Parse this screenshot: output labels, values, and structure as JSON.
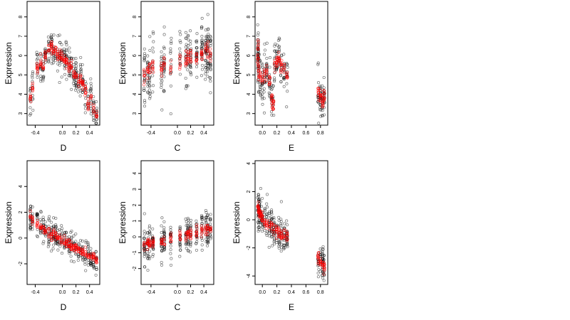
{
  "colors": {
    "series_a": "#000000",
    "series_b": "#ff0000",
    "background": "#ffffff"
  },
  "chart_data": [
    {
      "type": "scatter",
      "xlabel": "D",
      "ylabel": "Expression",
      "xlim": [
        -0.52,
        0.55
      ],
      "ylim": [
        2.4,
        8.8
      ],
      "xticks": [
        -0.4,
        0.0,
        0.2,
        0.4
      ],
      "xtick_labels": [
        "-0.4",
        "0.0",
        "0.2",
        "0.4"
      ],
      "yticks": [
        3,
        4,
        5,
        6,
        7,
        8
      ],
      "ytick_labels": [
        "3",
        "4",
        "5",
        "6",
        "7",
        "8"
      ],
      "groups_x": [
        -0.47,
        -0.44,
        -0.37,
        -0.32,
        -0.28,
        -0.25,
        -0.2,
        -0.16,
        -0.13,
        -0.1,
        -0.07,
        -0.04,
        -0.01,
        0.03,
        0.06,
        0.1,
        0.13,
        0.17,
        0.2,
        0.24,
        0.27,
        0.3,
        0.34,
        0.38,
        0.42,
        0.46,
        0.5
      ],
      "trend_y": [
        3.8,
        4.3,
        5.4,
        5.6,
        5.4,
        6.0,
        6.3,
        6.5,
        6.2,
        6.3,
        6.0,
        6.1,
        5.9,
        5.8,
        5.7,
        5.5,
        5.4,
        5.1,
        5.0,
        4.6,
        4.8,
        4.5,
        4.2,
        3.5,
        3.8,
        3.2,
        2.9
      ],
      "spread": 0.8,
      "sample_count": 340
    },
    {
      "type": "scatter",
      "xlabel": "C",
      "ylabel": "Expression",
      "xlim": [
        -0.55,
        0.55
      ],
      "ylim": [
        2.4,
        8.8
      ],
      "xticks": [
        -0.4,
        0.0,
        0.2,
        0.4
      ],
      "xtick_labels": [
        "-0.4",
        "0.0",
        "0.2",
        "0.4"
      ],
      "yticks": [
        3,
        4,
        5,
        6,
        7,
        8
      ],
      "ytick_labels": [
        "3",
        "4",
        "5",
        "6",
        "7",
        "8"
      ],
      "groups_x": [
        -0.5,
        -0.45,
        -0.42,
        -0.37,
        -0.24,
        -0.2,
        -0.1,
        0.04,
        0.13,
        0.16,
        0.2,
        0.29,
        0.37,
        0.43,
        0.46,
        0.5
      ],
      "trend_y": [
        5.0,
        5.2,
        5.3,
        5.4,
        5.3,
        5.5,
        5.4,
        5.6,
        5.7,
        5.8,
        5.9,
        6.0,
        6.1,
        6.2,
        6.2,
        6.1
      ],
      "spread": 1.3,
      "sample_count": 320
    },
    {
      "type": "scatter",
      "xlabel": "E",
      "ylabel": "Expression",
      "xlim": [
        -0.1,
        0.9
      ],
      "ylim": [
        2.4,
        8.8
      ],
      "xticks": [
        0.0,
        0.2,
        0.4,
        0.6,
        0.8
      ],
      "xtick_labels": [
        "0.0",
        "0.2",
        "0.4",
        "0.6",
        "0.8"
      ],
      "yticks": [
        3,
        4,
        5,
        6,
        7,
        8
      ],
      "ytick_labels": [
        "3",
        "4",
        "5",
        "6",
        "7",
        "8"
      ],
      "groups_x": [
        -0.06,
        -0.06,
        -0.05,
        -0.03,
        0.0,
        0.03,
        0.06,
        0.1,
        0.13,
        0.15,
        0.17,
        0.2,
        0.23,
        0.26,
        0.3,
        0.34,
        0.77,
        0.8,
        0.83,
        0.85
      ],
      "trend_y": [
        6.5,
        5.8,
        5.2,
        4.9,
        4.7,
        5.1,
        5.2,
        4.6,
        3.8,
        3.5,
        5.5,
        5.6,
        5.8,
        5.4,
        5.2,
        4.9,
        4.1,
        3.8,
        3.6,
        3.9
      ],
      "spread": 1.0,
      "sample_count": 300
    },
    {
      "type": "scatter",
      "xlabel": "D",
      "ylabel": "Expression",
      "xlim": [
        -0.52,
        0.55
      ],
      "ylim": [
        -3.6,
        6.0
      ],
      "xticks": [
        -0.4,
        0.0,
        0.2,
        0.4
      ],
      "xtick_labels": [
        "-0.4",
        "0.0",
        "0.2",
        "0.4"
      ],
      "yticks": [
        -2,
        0,
        2,
        4
      ],
      "ytick_labels": [
        "-2",
        "0",
        "2",
        "4"
      ],
      "groups_x": [
        -0.47,
        -0.44,
        -0.37,
        -0.32,
        -0.28,
        -0.25,
        -0.2,
        -0.16,
        -0.13,
        -0.1,
        -0.07,
        -0.04,
        -0.01,
        0.03,
        0.06,
        0.1,
        0.13,
        0.17,
        0.2,
        0.24,
        0.27,
        0.3,
        0.34,
        0.38,
        0.42,
        0.46,
        0.5
      ],
      "trend_y": [
        1.6,
        1.4,
        1.1,
        0.9,
        0.8,
        0.6,
        0.5,
        0.3,
        0.2,
        0.1,
        0.0,
        -0.1,
        -0.2,
        -0.3,
        -0.4,
        -0.5,
        -0.6,
        -0.7,
        -0.8,
        -0.9,
        -1.0,
        -1.1,
        -1.2,
        -1.3,
        -1.4,
        -1.5,
        -1.6
      ],
      "spread": 1.0,
      "sample_count": 340
    },
    {
      "type": "scatter",
      "xlabel": "C",
      "ylabel": "Expression",
      "xlim": [
        -0.55,
        0.55
      ],
      "ylim": [
        -3.0,
        4.8
      ],
      "xticks": [
        -0.4,
        0.0,
        0.2,
        0.4
      ],
      "xtick_labels": [
        "-0.4",
        "0.0",
        "0.2",
        "0.4"
      ],
      "yticks": [
        -2,
        -1,
        0,
        1,
        2,
        3,
        4
      ],
      "ytick_labels": [
        "-2",
        "-1",
        "0",
        "1",
        "2",
        "3",
        "4"
      ],
      "groups_x": [
        -0.5,
        -0.45,
        -0.42,
        -0.37,
        -0.24,
        -0.2,
        -0.1,
        0.04,
        0.13,
        0.16,
        0.2,
        0.29,
        0.37,
        0.43,
        0.46,
        0.5
      ],
      "trend_y": [
        -0.5,
        -0.45,
        -0.4,
        -0.35,
        -0.3,
        -0.25,
        -0.15,
        0.0,
        0.1,
        0.15,
        0.2,
        0.3,
        0.35,
        0.4,
        0.45,
        0.5
      ],
      "spread": 1.0,
      "sample_count": 320
    },
    {
      "type": "scatter",
      "xlabel": "E",
      "ylabel": "Expression",
      "xlim": [
        -0.1,
        0.9
      ],
      "ylim": [
        -4.6,
        4.2
      ],
      "xticks": [
        0.0,
        0.2,
        0.4,
        0.6,
        0.8
      ],
      "xtick_labels": [
        "0.0",
        "0.2",
        "0.4",
        "0.6",
        "0.8"
      ],
      "yticks": [
        -4,
        -2,
        0,
        2,
        4
      ],
      "ytick_labels": [
        "-4",
        "-2",
        "0",
        "2",
        "4"
      ],
      "groups_x": [
        -0.06,
        -0.05,
        -0.04,
        -0.02,
        0.0,
        0.03,
        0.06,
        0.1,
        0.13,
        0.16,
        0.2,
        0.23,
        0.26,
        0.3,
        0.34,
        0.77,
        0.8,
        0.83,
        0.85
      ],
      "trend_y": [
        0.9,
        0.7,
        0.5,
        0.3,
        0.1,
        -0.1,
        -0.2,
        -0.4,
        -0.5,
        -0.6,
        -0.7,
        -0.9,
        -1.0,
        -1.1,
        -1.2,
        -2.8,
        -3.0,
        -3.2,
        -3.3
      ],
      "spread": 1.1,
      "sample_count": 300
    }
  ]
}
